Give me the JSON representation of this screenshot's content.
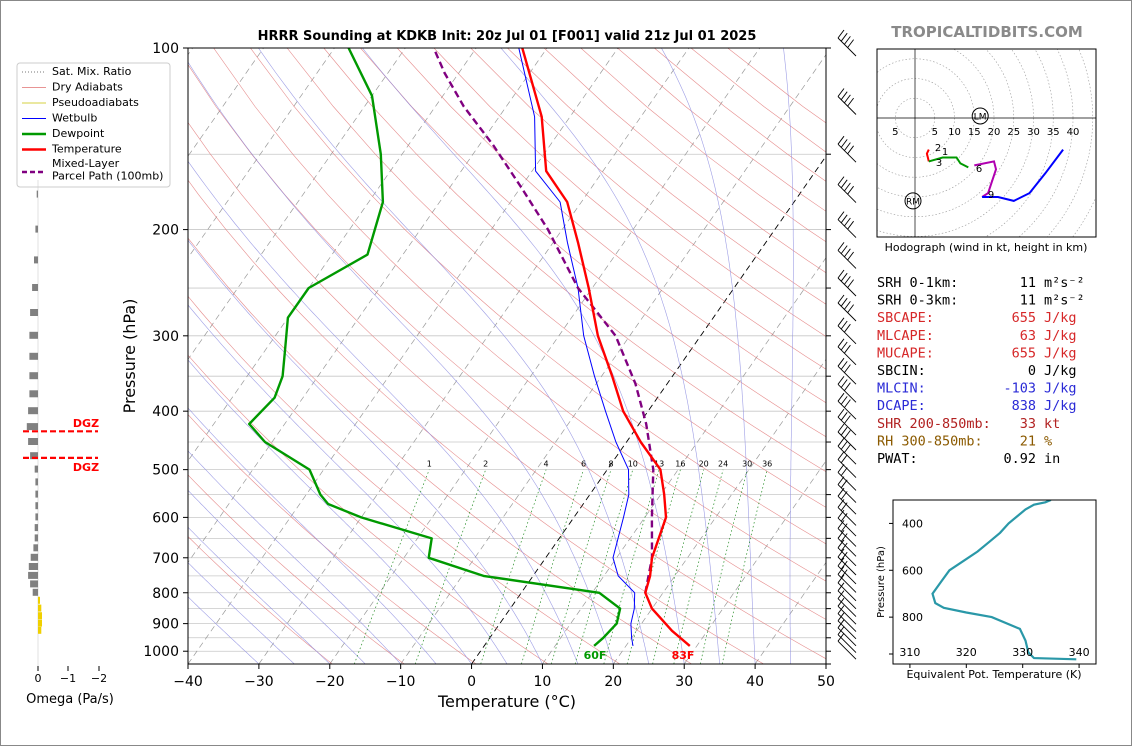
{
  "brand": "TROPICALTIDBITS.COM",
  "title": "HRRR Sounding at KDKB Init: 20z Jul 01 [F001] valid 21z Jul 01 2025",
  "colors": {
    "temperature": "#ff0000",
    "dewpoint": "#009900",
    "wetbulb": "#0000ff",
    "parcel": "#800080",
    "dry_adiabat": "#e07070",
    "moist_adiabat": "#8c8ce0",
    "mixing_ratio": "#228b22",
    "isotherm": "#333333",
    "omega_up": "#808080",
    "omega_down": "#f0d000",
    "hodo_low": "#ff0000",
    "hodo_mid": "#009900",
    "hodo_upper": "#b000b0",
    "hodo_high": "#0000ff",
    "theta_e": "#2a98a8"
  },
  "skewt": {
    "xlabel": "Temperature (°C)",
    "ylabel": "Pressure (hPa)",
    "x_ticks": [
      -40,
      -30,
      -20,
      -10,
      0,
      10,
      20,
      30,
      40,
      50
    ],
    "x_tick_labels": [
      "−40",
      "−30",
      "−20",
      "−10",
      "0",
      "10",
      "20",
      "30",
      "40",
      "50"
    ],
    "y_ticks": [
      100,
      200,
      300,
      400,
      500,
      600,
      700,
      800,
      900,
      1000
    ],
    "y_tick_labels": [
      "100",
      "200",
      "300",
      "400",
      "500",
      "600",
      "700",
      "800",
      "900",
      "1000"
    ],
    "xlim": [
      -40,
      50
    ],
    "ylim": [
      1050,
      100
    ],
    "surface_temp_label": "83F",
    "surface_dewpoint_label": "60F",
    "mixing_ratio_labels": [
      "1",
      "2",
      "4",
      "6",
      "8",
      "10",
      "13",
      "16",
      "20",
      "24",
      "30",
      "36"
    ],
    "dgz_top_label": "DGZ",
    "dgz_bottom_label": "DGZ",
    "dgz_top_hpa": 432,
    "dgz_bottom_hpa": 478,
    "legend": [
      {
        "label": "Sat. Mix. Ratio",
        "style": "dotted-gray"
      },
      {
        "label": "Dry Adiabats",
        "style": "dry"
      },
      {
        "label": "Pseudoadiabats",
        "style": "pseudo"
      },
      {
        "label": "Wetbulb",
        "style": "wetbulb"
      },
      {
        "label": "Dewpoint",
        "style": "dewpoint"
      },
      {
        "label": "Temperature",
        "style": "temperature"
      },
      {
        "label": "Mixed-Layer",
        "style": "parcel"
      },
      {
        "label": "Parcel Path (100mb)",
        "style": "none"
      }
    ]
  },
  "omega": {
    "xlabel": "Omega (Pa/s)",
    "x_tick_labels": [
      "0",
      "−1",
      "−2"
    ]
  },
  "hodograph": {
    "caption": "Hodograph (wind in kt, height in km)",
    "ring_labels": [
      "5",
      "5",
      "10",
      "15",
      "20",
      "25",
      "30",
      "35",
      "40"
    ],
    "height_labels": [
      "2",
      "1",
      "3",
      "6",
      "9"
    ],
    "lm_label": "LM",
    "rm_label": "RM"
  },
  "indices": [
    {
      "label": "SRH 0-1km:",
      "value": "11",
      "unit": "m²s⁻²",
      "color": "#000000"
    },
    {
      "label": "SRH 0-3km:",
      "value": "11",
      "unit": "m²s⁻²",
      "color": "#000000"
    },
    {
      "label": "SBCAPE:",
      "value": "655",
      "unit": "J/kg",
      "color": "#d62728"
    },
    {
      "label": "MLCAPE:",
      "value": "63",
      "unit": "J/kg",
      "color": "#d62728"
    },
    {
      "label": "MUCAPE:",
      "value": "655",
      "unit": "J/kg",
      "color": "#d62728"
    },
    {
      "label": "SBCIN:",
      "value": "0",
      "unit": "J/kg",
      "color": "#000000"
    },
    {
      "label": "MLCIN:",
      "value": "-103",
      "unit": "J/kg",
      "color": "#2a2ad6"
    },
    {
      "label": "DCAPE:",
      "value": "838",
      "unit": "J/kg",
      "color": "#2a2ad6"
    },
    {
      "label": "SHR 200-850mb:",
      "value": "33",
      "unit": "kt",
      "color": "#b22222"
    },
    {
      "label": "RH 300-850mb:",
      "value": "21",
      "unit": "%",
      "color": "#8b5a00"
    },
    {
      "label": "PWAT:",
      "value": "0.92",
      "unit": "in",
      "color": "#000000"
    }
  ],
  "theta_e_panel": {
    "xlabel": "Equivalent Pot. Temperature (K)",
    "ylabel": "Pressure (hPa)",
    "x_tick_labels": [
      "310",
      "320",
      "330",
      "340"
    ],
    "y_tick_labels": [
      "400",
      "600",
      "800"
    ]
  },
  "chart_data": [
    {
      "type": "line",
      "name": "skew-t",
      "title": "HRRR Sounding at KDKB Init: 20z Jul 01 [F001] valid 21z Jul 01 2025",
      "xlabel": "Temperature (°C)",
      "ylabel": "Pressure (hPa)",
      "xlim": [
        -40,
        50
      ],
      "ylim": [
        1050,
        100
      ],
      "y_scale": "log",
      "grid": true,
      "legend_position": "upper-left",
      "series": [
        {
          "name": "Temperature",
          "points": [
            [
              29,
              980
            ],
            [
              25,
              925
            ],
            [
              20,
              850
            ],
            [
              17.5,
              800
            ],
            [
              16.5,
              750
            ],
            [
              15,
              700
            ],
            [
              13,
              600
            ],
            [
              10.5,
              550
            ],
            [
              7.5,
              500
            ],
            [
              2,
              450
            ],
            [
              -3.5,
              400
            ],
            [
              -8.5,
              350
            ],
            [
              -14.5,
              300
            ],
            [
              -20.5,
              250
            ],
            [
              -26.5,
              210
            ],
            [
              -32,
              180
            ],
            [
              -38,
              160
            ],
            [
              -44,
              130
            ],
            [
              -53.5,
              100
            ]
          ]
        },
        {
          "name": "Dewpoint",
          "points": [
            [
              15.5,
              980
            ],
            [
              16,
              950
            ],
            [
              16.5,
              900
            ],
            [
              15.5,
              850
            ],
            [
              11,
              800
            ],
            [
              -7,
              750
            ],
            [
              -16.5,
              700
            ],
            [
              -18,
              650
            ],
            [
              -30,
              600
            ],
            [
              -36,
              570
            ],
            [
              -38,
              550
            ],
            [
              -42,
              500
            ],
            [
              -51,
              450
            ],
            [
              -55,
              420
            ],
            [
              -54,
              380
            ],
            [
              -55,
              350
            ],
            [
              -57,
              320
            ],
            [
              -60,
              280
            ],
            [
              -60,
              250
            ],
            [
              -55,
              220
            ],
            [
              -58,
              180
            ],
            [
              -63,
              150
            ],
            [
              -70,
              120
            ],
            [
              -78,
              100
            ]
          ]
        },
        {
          "name": "Wetbulb",
          "points": [
            [
              21,
              980
            ],
            [
              20,
              950
            ],
            [
              18.5,
              900
            ],
            [
              17.5,
              850
            ],
            [
              16,
              800
            ],
            [
              12,
              750
            ],
            [
              9.5,
              700
            ],
            [
              7,
              600
            ],
            [
              5.5,
              550
            ],
            [
              3,
              500
            ],
            [
              -1.5,
              450
            ],
            [
              -6,
              400
            ],
            [
              -11,
              350
            ],
            [
              -16.5,
              300
            ],
            [
              -22,
              250
            ],
            [
              -28,
              210
            ],
            [
              -33,
              180
            ],
            [
              -39.5,
              160
            ],
            [
              -45,
              130
            ],
            [
              -54,
              100
            ]
          ]
        },
        {
          "name": "Mixed-Layer Parcel Path (100mb)",
          "points": [
            [
              17.5,
              800
            ],
            [
              15,
              700
            ],
            [
              11,
              600
            ],
            [
              6.5,
              500
            ],
            [
              1,
              420
            ],
            [
              -4.5,
              360
            ],
            [
              -12,
              300
            ],
            [
              -22,
              250
            ],
            [
              -32,
              200
            ],
            [
              -40,
              170
            ],
            [
              -48,
              145
            ],
            [
              -56,
              125
            ],
            [
              -62,
              110
            ],
            [
              -66,
              100
            ]
          ]
        }
      ]
    },
    {
      "type": "line",
      "name": "equivalent-potential-temperature",
      "xlabel": "Equivalent Pot. Temperature (K)",
      "ylabel": "Pressure (hPa)",
      "xlim": [
        307,
        343
      ],
      "ylim": [
        1000,
        300
      ],
      "series": [
        {
          "name": "Theta-e",
          "points": [
            [
              339.5,
              980
            ],
            [
              332,
              975
            ],
            [
              331,
              950
            ],
            [
              330.5,
              900
            ],
            [
              329.5,
              850
            ],
            [
              324.5,
              800
            ],
            [
              320,
              780
            ],
            [
              316,
              760
            ],
            [
              314.5,
              740
            ],
            [
              314,
              700
            ],
            [
              315.5,
              650
            ],
            [
              317,
              600
            ],
            [
              319.5,
              560
            ],
            [
              322,
              520
            ],
            [
              324,
              480
            ],
            [
              326,
              440
            ],
            [
              327.5,
              400
            ],
            [
              329,
              370
            ],
            [
              330.5,
              340
            ],
            [
              332,
              320
            ],
            [
              334,
              310
            ],
            [
              335,
              300
            ]
          ]
        }
      ]
    },
    {
      "type": "line",
      "name": "hodograph",
      "xlabel": "",
      "ylabel": "",
      "series": [
        {
          "name": "0-1 km",
          "points": [
            [
              3.5,
              -8
            ],
            [
              3,
              -9
            ],
            [
              3.5,
              -11
            ]
          ]
        },
        {
          "name": "1-3 km",
          "points": [
            [
              3.5,
              -11
            ],
            [
              7,
              -10
            ],
            [
              10.5,
              -10
            ],
            [
              11.5,
              -11.5
            ],
            [
              13.5,
              -12.5
            ]
          ]
        },
        {
          "name": "3-6 km",
          "points": [
            [
              15,
              -12
            ],
            [
              20,
              -11
            ],
            [
              20.5,
              -13
            ],
            [
              18.5,
              -19
            ],
            [
              17,
              -20
            ]
          ]
        },
        {
          "name": "6-9 km",
          "points": [
            [
              17,
              -20
            ],
            [
              21,
              -20
            ],
            [
              25,
              -21
            ],
            [
              29,
              -19
            ],
            [
              33,
              -14
            ],
            [
              37.5,
              -8
            ]
          ]
        }
      ],
      "storm_motion": {
        "LM": [
          16.5,
          0.5
        ],
        "RM": [
          -0.5,
          -21
        ]
      }
    },
    {
      "type": "bar",
      "name": "omega",
      "xlabel": "Omega (Pa/s)",
      "orientation": "horizontal",
      "x_ticks": [
        0,
        -1,
        -2
      ],
      "points_hpa": [
        175,
        200,
        225,
        250,
        275,
        300,
        325,
        350,
        375,
        400,
        425,
        450,
        475,
        500,
        525,
        550,
        575,
        600,
        625,
        650,
        675,
        700,
        725,
        750,
        775,
        800,
        825,
        850,
        875,
        900,
        925
      ],
      "values": [
        -0.02,
        -0.04,
        -0.06,
        -0.09,
        -0.12,
        -0.13,
        -0.13,
        -0.13,
        -0.13,
        -0.15,
        -0.17,
        -0.15,
        -0.12,
        -0.05,
        -0.04,
        -0.04,
        -0.04,
        -0.04,
        -0.05,
        -0.05,
        -0.07,
        -0.11,
        -0.14,
        -0.15,
        -0.12,
        -0.08,
        0.03,
        0.05,
        0.06,
        0.06,
        0.05
      ]
    }
  ]
}
